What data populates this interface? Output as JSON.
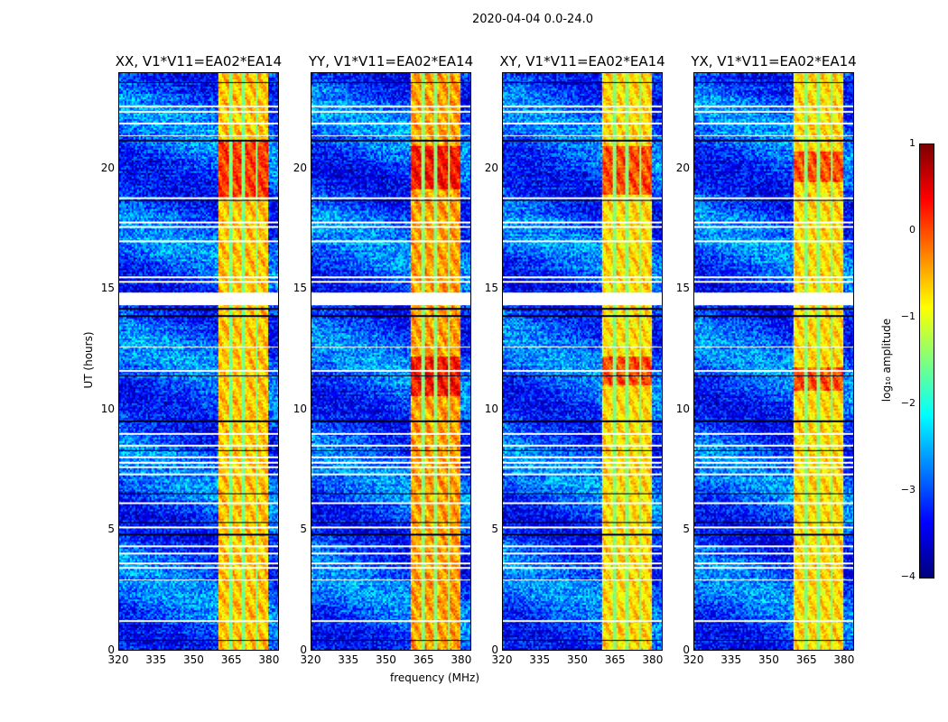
{
  "chart_data": {
    "type": "heatmap",
    "title": "2020-04-04 0.0-24.0",
    "xlabel": "frequency (MHz)",
    "ylabel": "UT (hours)",
    "xlim": [
      320,
      384
    ],
    "ylim": [
      0,
      24
    ],
    "xticks": [
      "320",
      "335",
      "350",
      "365",
      "380"
    ],
    "yticks": [
      "0",
      "5",
      "10",
      "15",
      "20"
    ],
    "panels": [
      {
        "title": "XX, V1*V11=EA02*EA14",
        "band_level": -0.6,
        "peak_hours": [
          [
            18.8,
            21.2
          ]
        ]
      },
      {
        "title": "YY, V1*V11=EA02*EA14",
        "band_level": -0.4,
        "peak_hours": [
          [
            19.2,
            21.0
          ],
          [
            10.6,
            12.2
          ]
        ]
      },
      {
        "title": "XY, V1*V11=EA02*EA14",
        "band_level": -0.7,
        "peak_hours": [
          [
            19.0,
            21.0
          ],
          [
            11.0,
            12.2
          ]
        ]
      },
      {
        "title": "YX, V1*V11=EA02*EA14",
        "band_level": -0.7,
        "peak_hours": [
          [
            19.5,
            20.8
          ],
          [
            10.8,
            11.8
          ]
        ]
      }
    ],
    "background_level": -3.0,
    "bright_band_mhz": [
      360,
      380
    ],
    "band_gap_channels_mhz": [
      365,
      370,
      375
    ],
    "flagged_white_hours": [
      22.6,
      22.4,
      21.9,
      21.4,
      18.8,
      17.8,
      17.6,
      17.0,
      15.5,
      15.3,
      12.6,
      11.6,
      9.0,
      8.5,
      8.0,
      7.8,
      7.6,
      7.3,
      6.1,
      5.1,
      4.3,
      4.0,
      3.6,
      3.4,
      2.9,
      1.2
    ],
    "flagged_block_hours": [
      14.35,
      14.85
    ],
    "dark_line_hours": [
      23.6,
      21.2,
      18.7,
      14.2,
      13.9,
      11.4,
      9.5,
      8.3,
      6.5,
      5.3,
      4.8,
      0.4
    ],
    "colorbar": {
      "label": "log₁₀ amplitude",
      "range": [
        -4,
        1
      ],
      "ticks": [
        "1",
        "0",
        "−1",
        "−2",
        "−3",
        "−4"
      ],
      "colormap": "jet"
    }
  }
}
